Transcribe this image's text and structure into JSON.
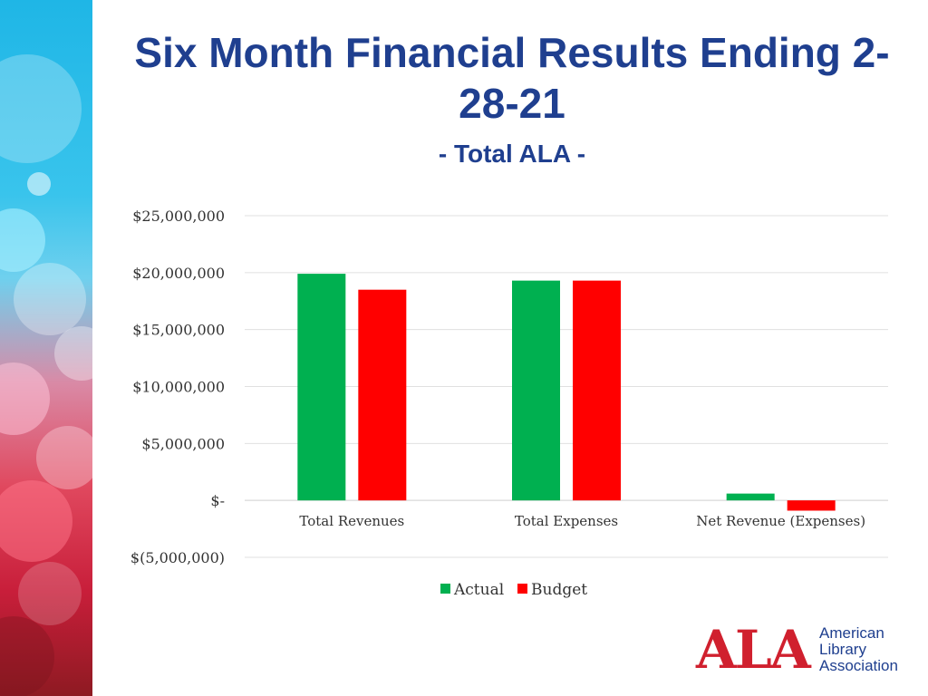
{
  "slide": {
    "title": "Six Month Financial Results Ending 2-28-21",
    "subtitle": "- Total ALA -"
  },
  "logo": {
    "mark": "ALA",
    "line1": "American",
    "line2": "Library",
    "line3": "Association"
  },
  "chart_data": {
    "type": "bar",
    "categories": [
      "Total Revenues",
      "Total Expenses",
      "Net Revenue (Expenses)"
    ],
    "series": [
      {
        "name": "Actual",
        "color": "#00b050",
        "values": [
          19900000,
          19300000,
          600000
        ]
      },
      {
        "name": "Budget",
        "color": "#ff0000",
        "values": [
          18500000,
          19300000,
          -900000
        ]
      }
    ],
    "ylim": [
      -5000000,
      25000000
    ],
    "yticks": [
      25000000,
      20000000,
      15000000,
      10000000,
      5000000,
      0,
      -5000000
    ],
    "ytick_labels": [
      "$25,000,000",
      "$20,000,000",
      "$15,000,000",
      "$10,000,000",
      "$5,000,000",
      "$-",
      "$(5,000,000)"
    ],
    "grid": true,
    "legend": "bottom"
  }
}
